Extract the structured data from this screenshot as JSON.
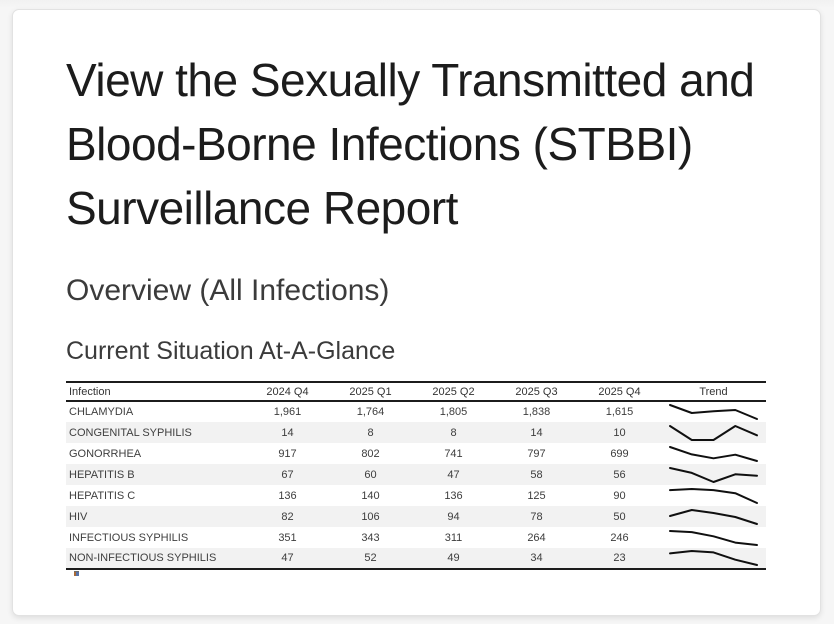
{
  "page": {
    "title": "View the Sexually Transmitted and Blood-Borne Infections (STBBI) Surveillance Report",
    "section_heading": "Overview (All Infections)",
    "subsection_heading": "Current Situation At-A-Glance"
  },
  "table": {
    "columns": [
      "Infection",
      "2024 Q4",
      "2025 Q1",
      "2025 Q2",
      "2025 Q3",
      "2025 Q4",
      "Trend"
    ],
    "rows": [
      {
        "infection": "CHLAMYDIA",
        "values": [
          1961,
          1764,
          1805,
          1838,
          1615
        ],
        "display": [
          "1,961",
          "1,764",
          "1,805",
          "1,838",
          "1,615"
        ]
      },
      {
        "infection": "CONGENITAL SYPHILIS",
        "values": [
          14,
          8,
          8,
          14,
          10
        ],
        "display": [
          "14",
          "8",
          "8",
          "14",
          "10"
        ]
      },
      {
        "infection": "GONORRHEA",
        "values": [
          917,
          802,
          741,
          797,
          699
        ],
        "display": [
          "917",
          "802",
          "741",
          "797",
          "699"
        ]
      },
      {
        "infection": "HEPATITIS B",
        "values": [
          67,
          60,
          47,
          58,
          56
        ],
        "display": [
          "67",
          "60",
          "47",
          "58",
          "56"
        ]
      },
      {
        "infection": "HEPATITIS C",
        "values": [
          136,
          140,
          136,
          125,
          90
        ],
        "display": [
          "136",
          "140",
          "136",
          "125",
          "90"
        ]
      },
      {
        "infection": "HIV",
        "values": [
          82,
          106,
          94,
          78,
          50
        ],
        "display": [
          "82",
          "106",
          "94",
          "78",
          "50"
        ]
      },
      {
        "infection": "INFECTIOUS SYPHILIS",
        "values": [
          351,
          343,
          311,
          264,
          246
        ],
        "display": [
          "351",
          "343",
          "311",
          "264",
          "246"
        ]
      },
      {
        "infection": "NON-INFECTIOUS SYPHILIS",
        "values": [
          47,
          52,
          49,
          34,
          23
        ],
        "display": [
          "47",
          "52",
          "49",
          "34",
          "23"
        ]
      }
    ]
  },
  "chart_data": {
    "type": "line",
    "note": "trend sparklines, one per table row",
    "x": [
      "2024 Q4",
      "2025 Q1",
      "2025 Q2",
      "2025 Q3",
      "2025 Q4"
    ],
    "series": [
      {
        "name": "CHLAMYDIA",
        "values": [
          1961,
          1764,
          1805,
          1838,
          1615
        ]
      },
      {
        "name": "CONGENITAL SYPHILIS",
        "values": [
          14,
          8,
          8,
          14,
          10
        ]
      },
      {
        "name": "GONORRHEA",
        "values": [
          917,
          802,
          741,
          797,
          699
        ]
      },
      {
        "name": "HEPATITIS B",
        "values": [
          67,
          60,
          47,
          58,
          56
        ]
      },
      {
        "name": "HEPATITIS C",
        "values": [
          136,
          140,
          136,
          125,
          90
        ]
      },
      {
        "name": "HIV",
        "values": [
          82,
          106,
          94,
          78,
          50
        ]
      },
      {
        "name": "INFECTIOUS SYPHILIS",
        "values": [
          351,
          343,
          311,
          264,
          246
        ]
      },
      {
        "name": "NON-INFECTIOUS SYPHILIS",
        "values": [
          47,
          52,
          49,
          34,
          23
        ]
      }
    ]
  },
  "colors": {
    "table_border": "#1c1c1c",
    "row_alt_bg": "#f2f2f2",
    "sparkline": "#101010",
    "card_bg": "#ffffff",
    "page_bg": "#f4f4f4"
  }
}
